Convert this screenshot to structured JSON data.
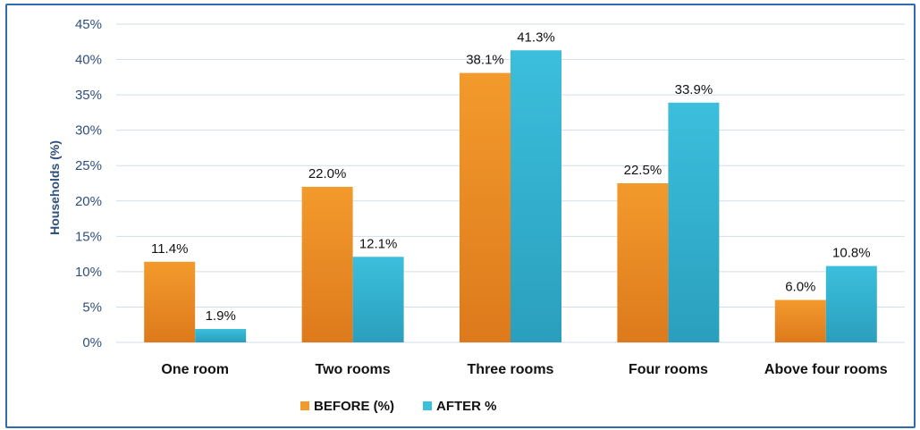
{
  "chart_data": {
    "type": "bar",
    "title": "",
    "ylabel": "Households (%)",
    "xlabel": "",
    "categories": [
      "One room",
      "Two rooms",
      "Three rooms",
      "Four rooms",
      "Above four rooms"
    ],
    "series": [
      {
        "name": "BEFORE (%)",
        "values": [
          11.4,
          22.0,
          38.1,
          22.5,
          6.0
        ],
        "labels": [
          "11.4%",
          "22.0%",
          "38.1%",
          "22.5%",
          "6.0%"
        ],
        "color": "#f39a2c",
        "color_dark": "#dd7a1c"
      },
      {
        "name": "AFTER %",
        "values": [
          1.9,
          12.1,
          41.3,
          33.9,
          10.8
        ],
        "labels": [
          "1.9%",
          "12.1%",
          "41.3%",
          "33.9%",
          "10.8%"
        ],
        "color": "#3bbfdc",
        "color_dark": "#2a9fbd"
      }
    ],
    "ylim": [
      0,
      45
    ],
    "yticks": [
      "0%",
      "5%",
      "10%",
      "15%",
      "20%",
      "25%",
      "30%",
      "35%",
      "40%",
      "45%"
    ],
    "grid": true,
    "legend_position": "bottom-center"
  },
  "colors": {
    "frame_border": "#2e6bb0",
    "gridline": "#d4dde8",
    "axis_text": "#2f4f7f"
  }
}
